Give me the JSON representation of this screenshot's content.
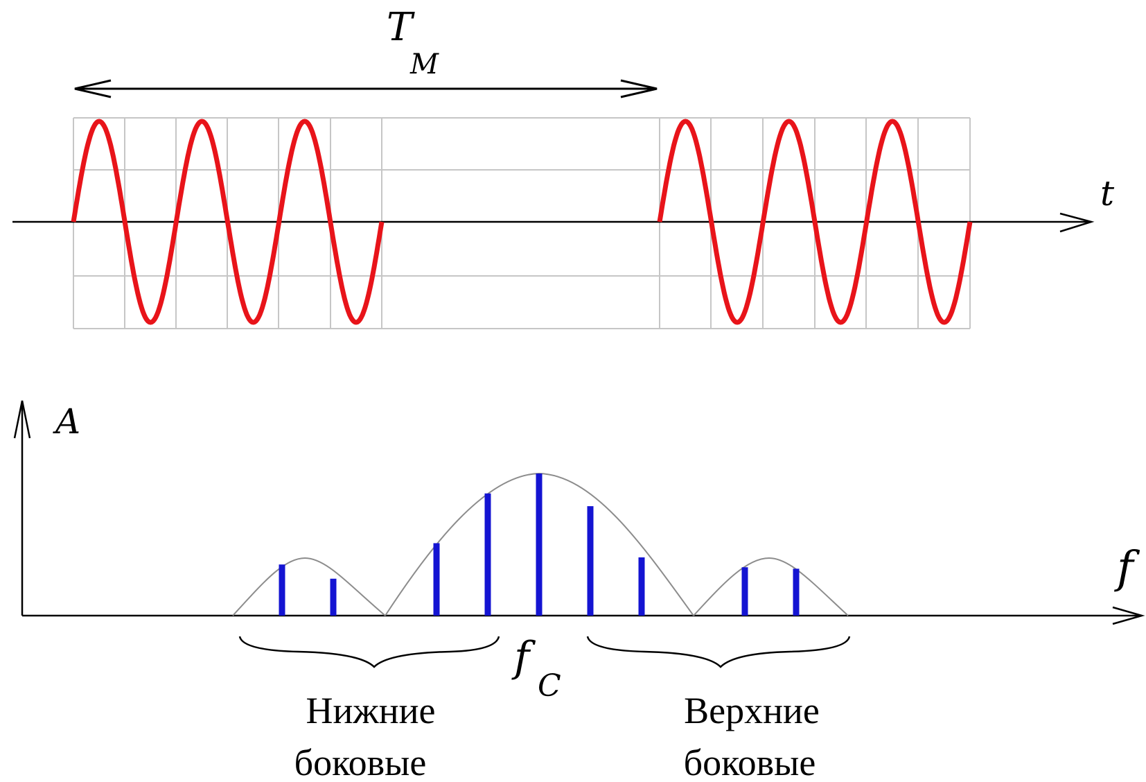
{
  "labels": {
    "period": "T",
    "period_sub": "M",
    "time_axis": "t",
    "amplitude_axis": "A",
    "freq_axis": "f",
    "carrier": "f",
    "carrier_sub": "C",
    "lower_line1": "Нижние",
    "lower_line2": "боковые",
    "upper_line1": "Верхние",
    "upper_line2": "боковые"
  },
  "colors": {
    "signal": "#e8141a",
    "spectral_lines": "#1414d2",
    "grid": "#c6c6c6",
    "axes": "#000000",
    "envelope": "#8c8c8c"
  },
  "time_signal": {
    "bursts": 2,
    "cycles_per_burst": 3,
    "gap_between_bursts": "no signal"
  },
  "spectrum": {
    "lobes": [
      "lower sidebands",
      "main lobe around carrier",
      "upper sidebands"
    ],
    "line_amplitudes_relative": [
      0.36,
      0.26,
      0.51,
      0.86,
      1.0,
      0.77,
      0.41,
      0.34,
      0.33
    ]
  }
}
